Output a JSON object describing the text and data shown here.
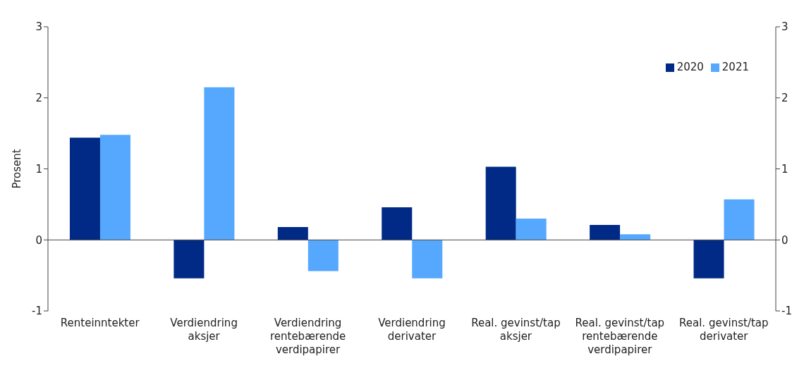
{
  "chart_data": {
    "type": "bar",
    "ylabel": "Prosent",
    "categories": [
      "Renteinntekter",
      "Verdiendring aksjer",
      "Verdiendring rentebærende verdipapirer",
      "Verdiendring derivater",
      "Real. gevinst/tap aksjer",
      "Real. gevinst/tap rentebærende verdipapirer",
      "Real. gevinst/tap derivater"
    ],
    "series": [
      {
        "name": "2020",
        "color": "#002a85",
        "values": [
          1.44,
          -0.54,
          0.18,
          0.46,
          1.03,
          0.21,
          -0.54
        ]
      },
      {
        "name": "2021",
        "color": "#56a8ff",
        "values": [
          1.48,
          2.15,
          -0.44,
          -0.54,
          0.3,
          0.08,
          0.57
        ]
      }
    ],
    "ylim": [
      -1,
      3
    ],
    "yticks": [
      -1,
      0,
      1,
      2,
      3
    ],
    "y2lim": [
      -1,
      3
    ],
    "y2ticks": [
      -1,
      0,
      1,
      2,
      3
    ],
    "legend": "top right"
  }
}
